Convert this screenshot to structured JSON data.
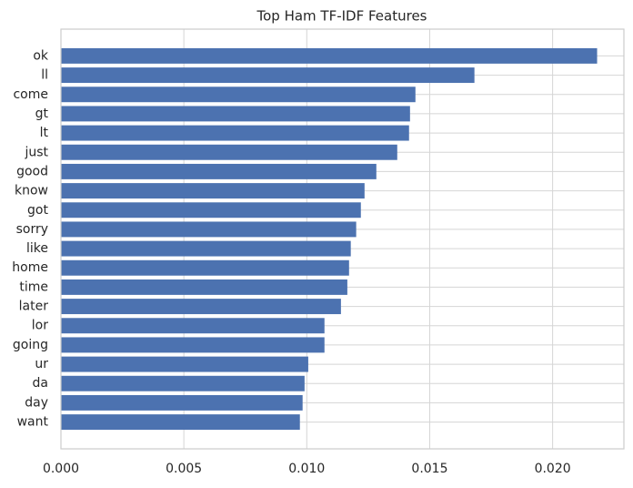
{
  "chart_data": {
    "type": "barh",
    "title": "Top Ham TF-IDF Features",
    "categories": [
      "ok",
      "ll",
      "come",
      "gt",
      "lt",
      "just",
      "good",
      "know",
      "got",
      "sorry",
      "like",
      "home",
      "time",
      "later",
      "lor",
      "going",
      "ur",
      "da",
      "day",
      "want"
    ],
    "values": [
      0.02181,
      0.01682,
      0.01442,
      0.0142,
      0.01416,
      0.01368,
      0.01283,
      0.01235,
      0.0122,
      0.01201,
      0.01179,
      0.01172,
      0.01165,
      0.01139,
      0.01072,
      0.01072,
      0.01006,
      0.00991,
      0.00983,
      0.00972
    ],
    "color": "#4c72b0",
    "xlim": [
      0,
      0.0229
    ],
    "xticks": [
      {
        "value": 0,
        "label": "0.000"
      },
      {
        "value": 0.005,
        "label": "0.005"
      },
      {
        "value": 0.01,
        "label": "0.010"
      },
      {
        "value": 0.015,
        "label": "0.015"
      },
      {
        "value": 0.02,
        "label": "0.020"
      }
    ],
    "grid": true
  }
}
